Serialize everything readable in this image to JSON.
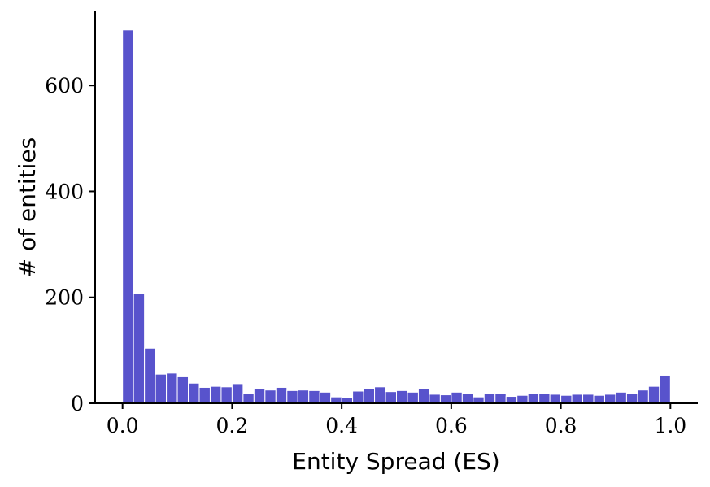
{
  "chart_data": {
    "type": "bar",
    "xlabel": "Entity Spread (ES)",
    "ylabel": "# of entities",
    "xlim": [
      -0.05,
      1.05
    ],
    "ylim": [
      0,
      740
    ],
    "x_ticks": [
      "0.0",
      "0.2",
      "0.4",
      "0.6",
      "0.8",
      "1.0"
    ],
    "y_ticks": [
      "0",
      "200",
      "400",
      "600"
    ],
    "bin_width": 0.02,
    "bin_starts": [
      0.0,
      0.02,
      0.04,
      0.06,
      0.08,
      0.1,
      0.12,
      0.14,
      0.16,
      0.18,
      0.2,
      0.22,
      0.24,
      0.26,
      0.28,
      0.3,
      0.32,
      0.34,
      0.36,
      0.38,
      0.4,
      0.42,
      0.44,
      0.46,
      0.48,
      0.5,
      0.52,
      0.54,
      0.56,
      0.58,
      0.6,
      0.62,
      0.64,
      0.66,
      0.68,
      0.7,
      0.72,
      0.74,
      0.76,
      0.78,
      0.8,
      0.82,
      0.84,
      0.86,
      0.88,
      0.9,
      0.92,
      0.94,
      0.96,
      0.98
    ],
    "values": [
      705,
      208,
      104,
      55,
      57,
      50,
      38,
      30,
      32,
      31,
      37,
      18,
      27,
      25,
      30,
      24,
      25,
      24,
      21,
      12,
      10,
      23,
      27,
      31,
      22,
      24,
      21,
      28,
      17,
      16,
      21,
      19,
      12,
      19,
      19,
      13,
      15,
      19,
      19,
      17,
      15,
      17,
      17,
      15,
      17,
      21,
      19,
      25,
      32,
      53
    ],
    "grid": false,
    "bar_color": "#5853cc"
  }
}
